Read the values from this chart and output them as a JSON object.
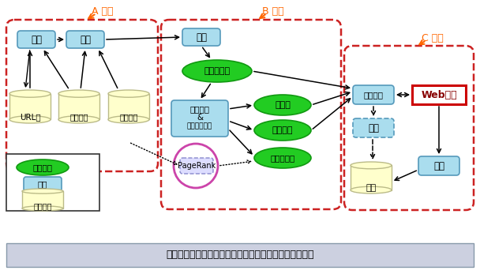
{
  "bg_color": "#ffffff",
  "title_bar_text": "李晓明等著，搜索引擎之原理、技术和系统，科学出版社",
  "title_bar_bg": "#ccd0e0",
  "section_A_label": "A 搜集",
  "section_B_label": "B 管理",
  "section_C_label": "C 服务",
  "box_blue_fill": "#aaddee",
  "box_blue_border": "#5599bb",
  "ellipse_green_fill": "#22cc22",
  "ellipse_green_border": "#119911",
  "cylinder_fill": "#ffffcc",
  "cylinder_border": "#bbbb88",
  "arrow_color": "#000000",
  "dashed_region_color": "#cc2222",
  "web_search_fill": "#ffffff",
  "web_search_border": "#cc0000",
  "pagerank_circle_color": "#cc44aa",
  "section_label_color": "#ff6600",
  "pagerank_box_fill": "#ddddff",
  "pagerank_box_border": "#8888cc",
  "legend_bg": "#ffffff",
  "legend_border": "#333333",
  "挖掘_ls": "--"
}
